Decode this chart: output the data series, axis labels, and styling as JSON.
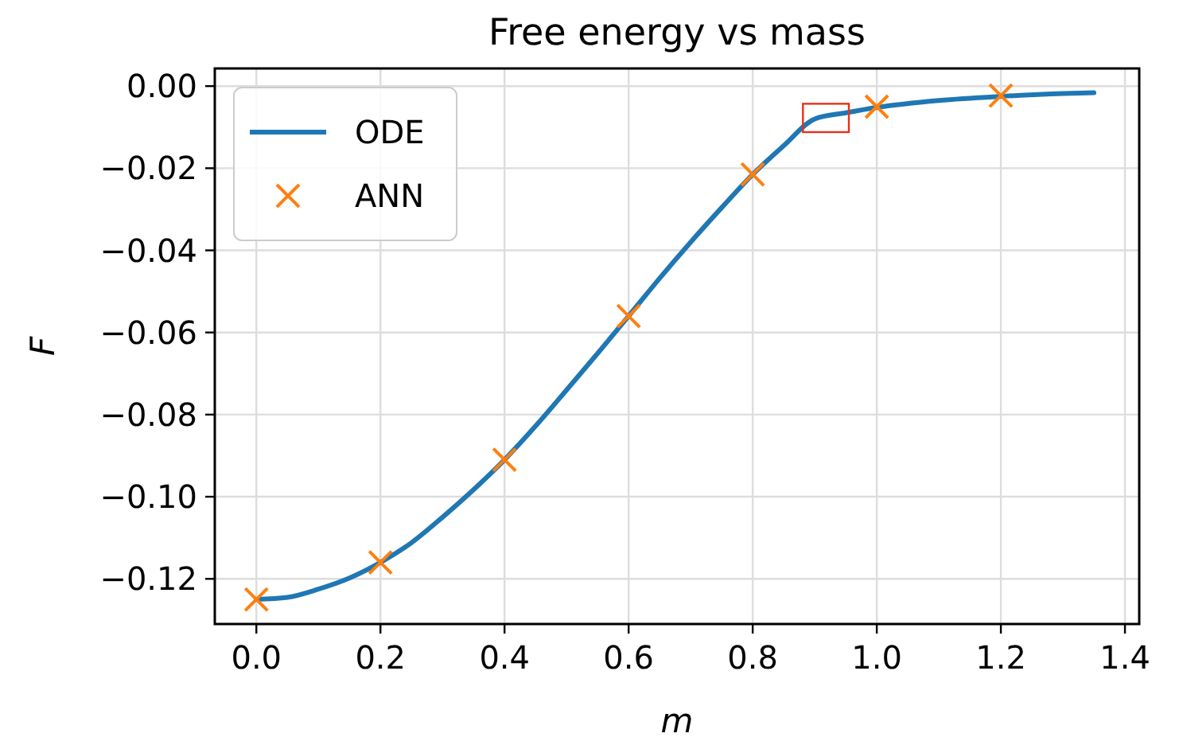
{
  "chart_data": {
    "type": "line",
    "title": "Free energy vs mass",
    "xlabel": "m",
    "ylabel": "F",
    "xlim": [
      -0.067,
      1.423
    ],
    "xticks": [
      {
        "value": 0,
        "label": "0.0"
      },
      0.2,
      0.4,
      0.6,
      0.8,
      {
        "value": 1,
        "label": "1.0"
      },
      1.2,
      1.4
    ],
    "ylim": [
      -0.131,
      0.0043
    ],
    "yticks": [
      {
        "value": -0.12,
        "label": "−0.12"
      },
      {
        "value": -0.1,
        "label": "−0.10"
      },
      {
        "value": -0.08,
        "label": "−0.08"
      },
      {
        "value": -0.06,
        "label": "−0.06"
      },
      {
        "value": -0.04,
        "label": "−0.04"
      },
      {
        "value": -0.02,
        "label": "−0.02"
      },
      {
        "value": 0,
        "label": "0.00"
      }
    ],
    "grid": true,
    "legend": "top left",
    "series": [
      {
        "name": "ODE",
        "color": "#1f77b4",
        "marker": "none",
        "line_style": "solid",
        "x": [
          0,
          0.05,
          0.1,
          0.15,
          0.2,
          0.25,
          0.3,
          0.35,
          0.4,
          0.45,
          0.5,
          0.55,
          0.6,
          0.65,
          0.7,
          0.75,
          0.8,
          0.85,
          0.9,
          0.95,
          1.0,
          1.1,
          1.2,
          1.3,
          1.35
        ],
        "values": [
          -0.125,
          -0.1245,
          -0.1225,
          -0.1198,
          -0.116,
          -0.1112,
          -0.105,
          -0.0983,
          -0.091,
          -0.0828,
          -0.074,
          -0.0651,
          -0.056,
          -0.0468,
          -0.038,
          -0.0296,
          -0.0215,
          -0.0145,
          -0.008,
          -0.0065,
          -0.0052,
          -0.0035,
          -0.0025,
          -0.0018,
          -0.0016
        ]
      },
      {
        "name": "ANN",
        "type": "scatter",
        "color": "#ff7f0e",
        "marker": "cross",
        "x": [
          0,
          0.2,
          0.4,
          0.6,
          0.8,
          1.0,
          1.2
        ],
        "values": [
          -0.125,
          -0.116,
          -0.091,
          -0.056,
          -0.0215,
          -0.005,
          -0.0023
        ]
      }
    ]
  }
}
